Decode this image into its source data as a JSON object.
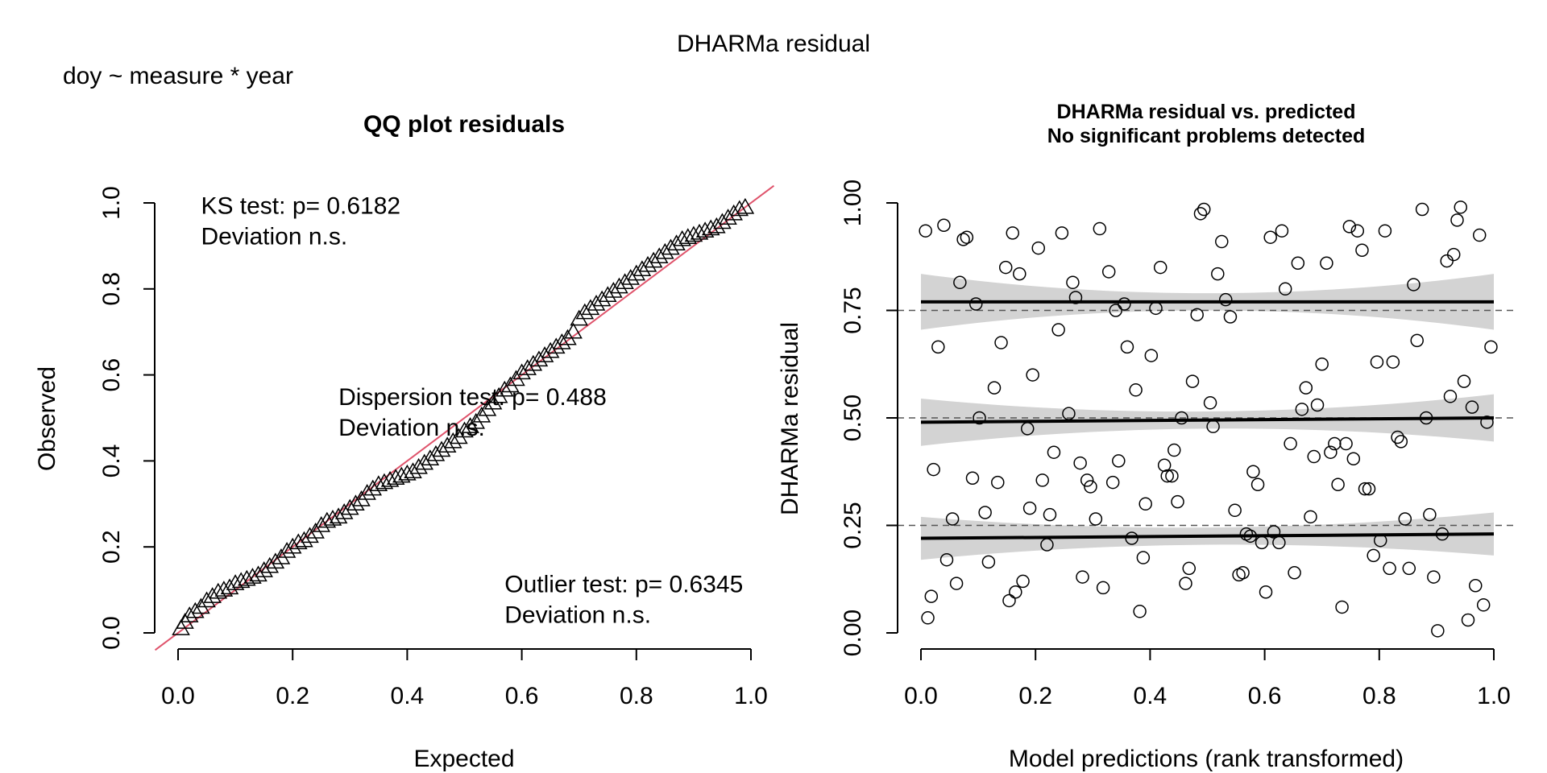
{
  "page_title": "DHARMa residual",
  "model_formula": "doy ~ measure * year",
  "colors": {
    "qq_line": "#DF536B",
    "band": "#D3D3D3",
    "points": "#000000"
  },
  "chart_data": [
    {
      "type": "scatter",
      "title": "QQ plot residuals",
      "xlabel": "Expected",
      "ylabel": "Observed",
      "xlim": [
        0,
        1
      ],
      "ylim": [
        0,
        1
      ],
      "x_ticks": [
        "0.0",
        "0.2",
        "0.4",
        "0.6",
        "0.8",
        "1.0"
      ],
      "y_ticks": [
        "0.0",
        "0.2",
        "0.4",
        "0.6",
        "0.8",
        "1.0"
      ],
      "marker": "triangle",
      "reference_line": "y = x",
      "annotations": [
        {
          "id": "ks",
          "lines": [
            "KS test: p= 0.6182",
            "Deviation  n.s."
          ],
          "anchor": [
            0.04,
            0.975
          ]
        },
        {
          "id": "dispersion",
          "lines": [
            "Dispersion test: p= 0.488",
            "Deviation  n.s."
          ],
          "anchor": [
            0.28,
            0.53
          ]
        },
        {
          "id": "outlier",
          "lines": [
            "Outlier test: p= 0.6345",
            "Deviation  n.s."
          ],
          "anchor": [
            0.57,
            0.095
          ]
        }
      ],
      "points": [
        [
          0.005,
          0.01
        ],
        [
          0.012,
          0.025
        ],
        [
          0.02,
          0.04
        ],
        [
          0.03,
          0.05
        ],
        [
          0.04,
          0.06
        ],
        [
          0.05,
          0.075
        ],
        [
          0.06,
          0.085
        ],
        [
          0.07,
          0.095
        ],
        [
          0.08,
          0.1
        ],
        [
          0.09,
          0.105
        ],
        [
          0.1,
          0.115
        ],
        [
          0.11,
          0.12
        ],
        [
          0.12,
          0.125
        ],
        [
          0.13,
          0.13
        ],
        [
          0.14,
          0.135
        ],
        [
          0.15,
          0.145
        ],
        [
          0.16,
          0.155
        ],
        [
          0.17,
          0.165
        ],
        [
          0.18,
          0.175
        ],
        [
          0.19,
          0.19
        ],
        [
          0.2,
          0.2
        ],
        [
          0.21,
          0.21
        ],
        [
          0.22,
          0.215
        ],
        [
          0.23,
          0.225
        ],
        [
          0.24,
          0.235
        ],
        [
          0.25,
          0.25
        ],
        [
          0.26,
          0.26
        ],
        [
          0.27,
          0.265
        ],
        [
          0.28,
          0.27
        ],
        [
          0.29,
          0.28
        ],
        [
          0.3,
          0.29
        ],
        [
          0.31,
          0.3
        ],
        [
          0.32,
          0.31
        ],
        [
          0.33,
          0.325
        ],
        [
          0.34,
          0.335
        ],
        [
          0.35,
          0.345
        ],
        [
          0.36,
          0.35
        ],
        [
          0.37,
          0.355
        ],
        [
          0.38,
          0.36
        ],
        [
          0.39,
          0.365
        ],
        [
          0.4,
          0.37
        ],
        [
          0.41,
          0.375
        ],
        [
          0.42,
          0.385
        ],
        [
          0.43,
          0.395
        ],
        [
          0.44,
          0.405
        ],
        [
          0.45,
          0.415
        ],
        [
          0.46,
          0.425
        ],
        [
          0.47,
          0.435
        ],
        [
          0.48,
          0.445
        ],
        [
          0.49,
          0.455
        ],
        [
          0.5,
          0.47
        ],
        [
          0.51,
          0.48
        ],
        [
          0.52,
          0.49
        ],
        [
          0.53,
          0.505
        ],
        [
          0.54,
          0.52
        ],
        [
          0.55,
          0.535
        ],
        [
          0.56,
          0.55
        ],
        [
          0.57,
          0.565
        ],
        [
          0.58,
          0.575
        ],
        [
          0.59,
          0.59
        ],
        [
          0.6,
          0.605
        ],
        [
          0.61,
          0.615
        ],
        [
          0.62,
          0.625
        ],
        [
          0.63,
          0.635
        ],
        [
          0.64,
          0.645
        ],
        [
          0.65,
          0.655
        ],
        [
          0.66,
          0.665
        ],
        [
          0.67,
          0.675
        ],
        [
          0.68,
          0.685
        ],
        [
          0.69,
          0.7
        ],
        [
          0.7,
          0.73
        ],
        [
          0.71,
          0.745
        ],
        [
          0.72,
          0.755
        ],
        [
          0.73,
          0.765
        ],
        [
          0.74,
          0.775
        ],
        [
          0.75,
          0.785
        ],
        [
          0.76,
          0.795
        ],
        [
          0.77,
          0.805
        ],
        [
          0.78,
          0.815
        ],
        [
          0.79,
          0.825
        ],
        [
          0.8,
          0.835
        ],
        [
          0.81,
          0.845
        ],
        [
          0.82,
          0.855
        ],
        [
          0.83,
          0.865
        ],
        [
          0.84,
          0.875
        ],
        [
          0.85,
          0.885
        ],
        [
          0.86,
          0.895
        ],
        [
          0.87,
          0.905
        ],
        [
          0.88,
          0.915
        ],
        [
          0.89,
          0.92
        ],
        [
          0.9,
          0.925
        ],
        [
          0.91,
          0.93
        ],
        [
          0.92,
          0.935
        ],
        [
          0.93,
          0.94
        ],
        [
          0.94,
          0.945
        ],
        [
          0.95,
          0.955
        ],
        [
          0.96,
          0.965
        ],
        [
          0.97,
          0.975
        ],
        [
          0.98,
          0.985
        ],
        [
          0.99,
          0.99
        ]
      ]
    },
    {
      "type": "scatter",
      "title": "DHARMa residual vs. predicted",
      "subtitle": "No significant problems detected",
      "xlabel": "Model predictions (rank transformed)",
      "ylabel": "DHARMa residual",
      "xlim": [
        0,
        1
      ],
      "ylim": [
        0,
        1
      ],
      "x_ticks": [
        "0.0",
        "0.2",
        "0.4",
        "0.6",
        "0.8",
        "1.0"
      ],
      "y_ticks": [
        "0.00",
        "0.25",
        "0.50",
        "0.75",
        "1.00"
      ],
      "marker": "open-circle",
      "reference_hlines": [
        0.25,
        0.5,
        0.75
      ],
      "quantile_fits": [
        {
          "quantile": 0.25,
          "start": 0.22,
          "end": 0.23,
          "band_halfwidth_ends": 0.05,
          "band_halfwidth_mid": 0.02
        },
        {
          "quantile": 0.5,
          "start": 0.49,
          "end": 0.5,
          "band_halfwidth_ends": 0.055,
          "band_halfwidth_mid": 0.02
        },
        {
          "quantile": 0.75,
          "start": 0.77,
          "end": 0.77,
          "band_halfwidth_ends": 0.065,
          "band_halfwidth_mid": 0.02
        }
      ],
      "points": [
        [
          0.008,
          0.935
        ],
        [
          0.012,
          0.035
        ],
        [
          0.018,
          0.085
        ],
        [
          0.022,
          0.38
        ],
        [
          0.03,
          0.665
        ],
        [
          0.04,
          0.948
        ],
        [
          0.045,
          0.17
        ],
        [
          0.055,
          0.265
        ],
        [
          0.062,
          0.115
        ],
        [
          0.068,
          0.815
        ],
        [
          0.074,
          0.915
        ],
        [
          0.08,
          0.92
        ],
        [
          0.09,
          0.36
        ],
        [
          0.096,
          0.765
        ],
        [
          0.102,
          0.5
        ],
        [
          0.112,
          0.28
        ],
        [
          0.118,
          0.165
        ],
        [
          0.128,
          0.57
        ],
        [
          0.134,
          0.35
        ],
        [
          0.14,
          0.675
        ],
        [
          0.148,
          0.85
        ],
        [
          0.154,
          0.075
        ],
        [
          0.16,
          0.93
        ],
        [
          0.165,
          0.095
        ],
        [
          0.172,
          0.835
        ],
        [
          0.178,
          0.12
        ],
        [
          0.186,
          0.475
        ],
        [
          0.19,
          0.29
        ],
        [
          0.195,
          0.6
        ],
        [
          0.205,
          0.895
        ],
        [
          0.212,
          0.355
        ],
        [
          0.22,
          0.205
        ],
        [
          0.225,
          0.275
        ],
        [
          0.232,
          0.42
        ],
        [
          0.24,
          0.705
        ],
        [
          0.246,
          0.93
        ],
        [
          0.258,
          0.51
        ],
        [
          0.265,
          0.815
        ],
        [
          0.27,
          0.78
        ],
        [
          0.278,
          0.395
        ],
        [
          0.282,
          0.13
        ],
        [
          0.29,
          0.355
        ],
        [
          0.296,
          0.34
        ],
        [
          0.305,
          0.265
        ],
        [
          0.312,
          0.94
        ],
        [
          0.318,
          0.105
        ],
        [
          0.328,
          0.84
        ],
        [
          0.335,
          0.35
        ],
        [
          0.34,
          0.75
        ],
        [
          0.345,
          0.4
        ],
        [
          0.355,
          0.765
        ],
        [
          0.36,
          0.665
        ],
        [
          0.368,
          0.22
        ],
        [
          0.375,
          0.565
        ],
        [
          0.382,
          0.05
        ],
        [
          0.388,
          0.175
        ],
        [
          0.392,
          0.3
        ],
        [
          0.402,
          0.645
        ],
        [
          0.41,
          0.755
        ],
        [
          0.418,
          0.85
        ],
        [
          0.425,
          0.39
        ],
        [
          0.43,
          0.365
        ],
        [
          0.438,
          0.365
        ],
        [
          0.442,
          0.425
        ],
        [
          0.448,
          0.305
        ],
        [
          0.455,
          0.5
        ],
        [
          0.462,
          0.115
        ],
        [
          0.468,
          0.15
        ],
        [
          0.474,
          0.585
        ],
        [
          0.482,
          0.74
        ],
        [
          0.488,
          0.975
        ],
        [
          0.494,
          0.985
        ],
        [
          0.505,
          0.535
        ],
        [
          0.51,
          0.48
        ],
        [
          0.518,
          0.835
        ],
        [
          0.525,
          0.91
        ],
        [
          0.532,
          0.775
        ],
        [
          0.54,
          0.735
        ],
        [
          0.548,
          0.285
        ],
        [
          0.555,
          0.135
        ],
        [
          0.562,
          0.14
        ],
        [
          0.568,
          0.23
        ],
        [
          0.575,
          0.225
        ],
        [
          0.58,
          0.375
        ],
        [
          0.588,
          0.345
        ],
        [
          0.595,
          0.21
        ],
        [
          0.602,
          0.095
        ],
        [
          0.61,
          0.92
        ],
        [
          0.616,
          0.235
        ],
        [
          0.625,
          0.21
        ],
        [
          0.63,
          0.935
        ],
        [
          0.636,
          0.8
        ],
        [
          0.645,
          0.44
        ],
        [
          0.652,
          0.14
        ],
        [
          0.658,
          0.86
        ],
        [
          0.665,
          0.52
        ],
        [
          0.672,
          0.57
        ],
        [
          0.68,
          0.27
        ],
        [
          0.686,
          0.41
        ],
        [
          0.692,
          0.53
        ],
        [
          0.7,
          0.625
        ],
        [
          0.708,
          0.86
        ],
        [
          0.715,
          0.42
        ],
        [
          0.722,
          0.44
        ],
        [
          0.728,
          0.345
        ],
        [
          0.735,
          0.06
        ],
        [
          0.742,
          0.44
        ],
        [
          0.748,
          0.945
        ],
        [
          0.755,
          0.405
        ],
        [
          0.762,
          0.935
        ],
        [
          0.77,
          0.89
        ],
        [
          0.775,
          0.335
        ],
        [
          0.782,
          0.335
        ],
        [
          0.79,
          0.18
        ],
        [
          0.796,
          0.63
        ],
        [
          0.802,
          0.215
        ],
        [
          0.81,
          0.935
        ],
        [
          0.818,
          0.15
        ],
        [
          0.824,
          0.63
        ],
        [
          0.832,
          0.455
        ],
        [
          0.838,
          0.445
        ],
        [
          0.845,
          0.265
        ],
        [
          0.852,
          0.15
        ],
        [
          0.86,
          0.81
        ],
        [
          0.866,
          0.68
        ],
        [
          0.875,
          0.985
        ],
        [
          0.882,
          0.5
        ],
        [
          0.888,
          0.275
        ],
        [
          0.895,
          0.13
        ],
        [
          0.902,
          0.005
        ],
        [
          0.91,
          0.23
        ],
        [
          0.918,
          0.865
        ],
        [
          0.924,
          0.55
        ],
        [
          0.93,
          0.88
        ],
        [
          0.936,
          0.96
        ],
        [
          0.942,
          0.99
        ],
        [
          0.948,
          0.585
        ],
        [
          0.955,
          0.03
        ],
        [
          0.962,
          0.525
        ],
        [
          0.968,
          0.11
        ],
        [
          0.975,
          0.925
        ],
        [
          0.982,
          0.065
        ],
        [
          0.988,
          0.49
        ],
        [
          0.995,
          0.665
        ]
      ]
    }
  ]
}
